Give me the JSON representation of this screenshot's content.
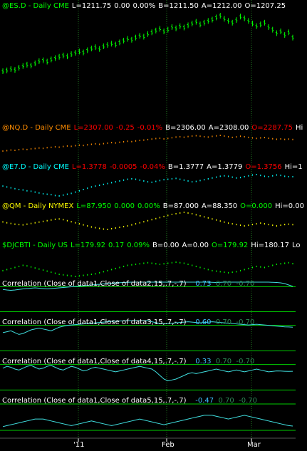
{
  "chart_data": {
    "type": "line",
    "x_ticks": [
      "'11",
      "Feb",
      "Mar"
    ],
    "panels": [
      {
        "id": "es",
        "style": "bar",
        "color": "#00ff00",
        "header": [
          {
            "text": "@ES.D - Daily  CME",
            "color": "#00ff00"
          },
          {
            "text": "L=1211.75",
            "color": "#ffffff"
          },
          {
            "text": "0.00",
            "color": "#ffffff"
          },
          {
            "text": "0.00%",
            "color": "#ffffff"
          },
          {
            "text": "B=1211.50",
            "color": "#ffffff"
          },
          {
            "text": "A=1212.00",
            "color": "#ffffff"
          },
          {
            "text": "O=1207.25",
            "color": "#ffffff"
          }
        ],
        "values": [
          1135,
          1137,
          1140,
          1138,
          1143,
          1147,
          1150,
          1148,
          1153,
          1158,
          1160,
          1157,
          1162,
          1165,
          1168,
          1171,
          1169,
          1174,
          1177,
          1180,
          1178,
          1183,
          1187,
          1190,
          1186,
          1192,
          1195,
          1198,
          1196,
          1201,
          1205,
          1209,
          1207,
          1212,
          1216,
          1214,
          1220,
          1224,
          1228,
          1232,
          1226,
          1230,
          1236,
          1233,
          1238,
          1235,
          1240,
          1244,
          1248,
          1242,
          1246,
          1250,
          1253,
          1258,
          1262,
          1255,
          1250,
          1246,
          1252,
          1260,
          1256,
          1250,
          1244,
          1238,
          1242,
          1246,
          1236,
          1230,
          1222,
          1226,
          1218,
          1224,
          1212
        ]
      },
      {
        "id": "nq",
        "style": "dots",
        "color": "#ff8c00",
        "header": [
          {
            "text": "@NQ.D - Daily  CME",
            "color": "#ff8c00"
          },
          {
            "text": "L=2307.00",
            "color": "#ff0000"
          },
          {
            "text": "-0.25",
            "color": "#ff0000"
          },
          {
            "text": "-0.01%",
            "color": "#ff0000"
          },
          {
            "text": "B=2306.00",
            "color": "#ffffff"
          },
          {
            "text": "A=2308.00",
            "color": "#ffffff"
          },
          {
            "text": "O=2287.75",
            "color": "#ff0000"
          },
          {
            "text": "Hi",
            "color": "#ffffff"
          }
        ],
        "values": [
          2170,
          2175,
          2182,
          2178,
          2186,
          2192,
          2188,
          2196,
          2200,
          2206,
          2202,
          2210,
          2214,
          2220,
          2216,
          2224,
          2230,
          2226,
          2234,
          2240,
          2236,
          2244,
          2250,
          2256,
          2250,
          2258,
          2264,
          2270,
          2266,
          2274,
          2280,
          2286,
          2282,
          2290,
          2296,
          2300,
          2306,
          2312,
          2318,
          2322,
          2314,
          2320,
          2328,
          2336,
          2340,
          2334,
          2342,
          2348,
          2352,
          2346,
          2340,
          2336,
          2344,
          2350,
          2356,
          2348,
          2340,
          2332,
          2338,
          2346,
          2340,
          2332,
          2326,
          2320,
          2326,
          2330,
          2322,
          2316,
          2310,
          2314,
          2308,
          2312,
          2307
        ]
      },
      {
        "id": "e7",
        "style": "dots",
        "color": "#00ffff",
        "header": [
          {
            "text": "@E7.D - Daily  CME",
            "color": "#00ffff"
          },
          {
            "text": "L=1.3778",
            "color": "#ff0000"
          },
          {
            "text": "-0.0005",
            "color": "#ff0000"
          },
          {
            "text": "-0.04%",
            "color": "#ff0000"
          },
          {
            "text": "B=1.3777",
            "color": "#ffffff"
          },
          {
            "text": "A=1.3779",
            "color": "#ffffff"
          },
          {
            "text": "O=1.3756",
            "color": "#ff0000"
          },
          {
            "text": "Hi=1",
            "color": "#ffffff"
          }
        ],
        "values": [
          1.334,
          1.33,
          1.326,
          1.322,
          1.318,
          1.316,
          1.312,
          1.31,
          1.306,
          1.302,
          1.298,
          1.296,
          1.294,
          1.29,
          1.288,
          1.292,
          1.296,
          1.3,
          1.306,
          1.312,
          1.318,
          1.324,
          1.33,
          1.334,
          1.338,
          1.342,
          1.346,
          1.35,
          1.354,
          1.358,
          1.362,
          1.366,
          1.368,
          1.366,
          1.362,
          1.358,
          1.354,
          1.352,
          1.356,
          1.36,
          1.364,
          1.366,
          1.368,
          1.37,
          1.366,
          1.362,
          1.358,
          1.354,
          1.356,
          1.36,
          1.364,
          1.368,
          1.372,
          1.376,
          1.38,
          1.382,
          1.38,
          1.376,
          1.372,
          1.374,
          1.378,
          1.382,
          1.386,
          1.388,
          1.384,
          1.38,
          1.378,
          1.382,
          1.386,
          1.384,
          1.38,
          1.378,
          1.3778
        ]
      },
      {
        "id": "qm",
        "style": "dots",
        "color": "#ffff00",
        "header": [
          {
            "text": "@QM - Daily  NYMEX",
            "color": "#ffff00"
          },
          {
            "text": "L=87.950",
            "color": "#00ff00"
          },
          {
            "text": "0.000",
            "color": "#00ff00"
          },
          {
            "text": "0.00%",
            "color": "#00ff00"
          },
          {
            "text": "B=87.000",
            "color": "#ffffff"
          },
          {
            "text": "A=88.350",
            "color": "#ffffff"
          },
          {
            "text": "O=0.000",
            "color": "#00ff00"
          },
          {
            "text": "Hi=0.00",
            "color": "#ffffff"
          }
        ],
        "values": [
          89.5,
          89.0,
          88.6,
          88.2,
          88.0,
          87.8,
          88.2,
          88.6,
          89.0,
          89.4,
          89.8,
          90.2,
          90.6,
          91.0,
          91.2,
          90.8,
          90.2,
          89.6,
          89.0,
          88.4,
          87.8,
          87.2,
          86.6,
          86.2,
          85.8,
          85.4,
          85.2,
          85.6,
          86.0,
          86.4,
          86.8,
          87.2,
          87.8,
          88.4,
          89.0,
          89.6,
          90.2,
          90.8,
          91.4,
          92.0,
          92.6,
          93.2,
          93.8,
          94.2,
          94.6,
          95.0,
          94.6,
          94.2,
          93.6,
          93.0,
          92.4,
          91.8,
          91.2,
          90.6,
          90.0,
          89.4,
          88.8,
          88.4,
          88.0,
          87.6,
          87.2,
          87.6,
          88.0,
          88.4,
          88.8,
          88.4,
          88.0,
          87.6,
          87.2,
          87.6,
          88.0,
          88.2,
          87.95
        ]
      },
      {
        "id": "dj",
        "style": "dots",
        "color": "#00ff00",
        "header": [
          {
            "text": "$DJCBTI - Daily  US",
            "color": "#00ff00"
          },
          {
            "text": "L=179.92",
            "color": "#00ff00"
          },
          {
            "text": "0.17",
            "color": "#00ff00"
          },
          {
            "text": "0.09%",
            "color": "#00ff00"
          },
          {
            "text": "B=0.00",
            "color": "#ffffff"
          },
          {
            "text": "A=0.00",
            "color": "#ffffff"
          },
          {
            "text": "O=179.92",
            "color": "#00ff00"
          },
          {
            "text": "Hi=180.17",
            "color": "#ffffff"
          },
          {
            "text": "Lo",
            "color": "#ffffff"
          }
        ],
        "values": [
          178.6,
          178.8,
          179.0,
          179.2,
          179.4,
          179.6,
          179.5,
          179.3,
          179.1,
          178.9,
          178.7,
          178.5,
          178.3,
          178.1,
          177.9,
          177.8,
          177.7,
          177.6,
          177.5,
          177.6,
          177.7,
          177.8,
          177.9,
          178.0,
          178.2,
          178.4,
          178.6,
          178.8,
          179.0,
          179.2,
          179.4,
          179.6,
          179.7,
          179.8,
          179.9,
          180.0,
          180.1,
          180.0,
          179.9,
          179.8,
          179.9,
          180.0,
          180.1,
          180.2,
          180.1,
          180.0,
          179.8,
          179.6,
          179.4,
          179.2,
          179.0,
          178.8,
          178.6,
          178.5,
          178.4,
          178.3,
          178.2,
          178.3,
          178.4,
          178.6,
          178.8,
          179.0,
          179.2,
          179.4,
          179.3,
          179.2,
          179.4,
          179.6,
          179.8,
          179.9,
          180.0,
          180.1,
          179.92
        ]
      }
    ],
    "correlations": [
      {
        "id": "c2",
        "label": "Correlation (Close of data1,Close of data2,15,.7,-.7)",
        "value": "0.73",
        "upper": "0.70",
        "lower": "-0.70",
        "values": [
          0.55,
          0.52,
          0.5,
          0.52,
          0.55,
          0.58,
          0.6,
          0.62,
          0.64,
          0.62,
          0.6,
          0.58,
          0.6,
          0.62,
          0.64,
          0.66,
          0.68,
          0.7,
          0.72,
          0.74,
          0.76,
          0.78,
          0.8,
          0.82,
          0.84,
          0.86,
          0.88,
          0.9,
          0.92,
          0.93,
          0.94,
          0.95,
          0.96,
          0.96,
          0.96,
          0.96,
          0.96,
          0.96,
          0.96,
          0.96,
          0.96,
          0.96,
          0.96,
          0.96,
          0.96,
          0.96,
          0.96,
          0.96,
          0.96,
          0.96,
          0.96,
          0.96,
          0.95,
          0.94,
          0.95,
          0.96,
          0.96,
          0.96,
          0.96,
          0.96,
          0.96,
          0.96,
          0.96,
          0.96,
          0.96,
          0.96,
          0.96,
          0.95,
          0.94,
          0.92,
          0.88,
          0.8,
          0.73
        ]
      },
      {
        "id": "c3",
        "label": "Correlation (Close of data1,Close of data3,15,.7,-.7)",
        "value": "0.60",
        "upper": "0.70",
        "lower": "-0.70",
        "values": [
          0.3,
          0.35,
          0.4,
          0.3,
          0.2,
          0.25,
          0.35,
          0.45,
          0.5,
          0.55,
          0.5,
          0.45,
          0.4,
          0.5,
          0.6,
          0.65,
          0.7,
          0.72,
          0.74,
          0.76,
          0.78,
          0.8,
          0.82,
          0.84,
          0.86,
          0.88,
          0.9,
          0.92,
          0.93,
          0.94,
          0.95,
          0.96,
          0.96,
          0.96,
          0.96,
          0.96,
          0.96,
          0.9,
          0.85,
          0.8,
          0.78,
          0.8,
          0.82,
          0.84,
          0.86,
          0.88,
          0.9,
          0.88,
          0.86,
          0.84,
          0.86,
          0.88,
          0.9,
          0.88,
          0.86,
          0.84,
          0.82,
          0.8,
          0.78,
          0.76,
          0.74,
          0.72,
          0.74,
          0.76,
          0.74,
          0.72,
          0.7,
          0.68,
          0.66,
          0.64,
          0.62,
          0.61,
          0.6
        ]
      },
      {
        "id": "c4",
        "label": "Correlation (Close of data1,Close of data4,15,.7,-.7)",
        "value": "0.33",
        "upper": "0.70",
        "lower": "-0.70",
        "values": [
          0.5,
          0.6,
          0.55,
          0.45,
          0.4,
          0.5,
          0.6,
          0.65,
          0.55,
          0.45,
          0.5,
          0.6,
          0.65,
          0.55,
          0.45,
          0.4,
          0.5,
          0.6,
          0.55,
          0.45,
          0.35,
          0.4,
          0.5,
          0.55,
          0.5,
          0.45,
          0.4,
          0.35,
          0.3,
          0.35,
          0.4,
          0.45,
          0.5,
          0.55,
          0.6,
          0.55,
          0.5,
          0.45,
          0.3,
          0.1,
          -0.1,
          -0.2,
          -0.15,
          -0.1,
          0.0,
          0.1,
          0.2,
          0.25,
          0.2,
          0.25,
          0.3,
          0.35,
          0.4,
          0.45,
          0.4,
          0.35,
          0.3,
          0.35,
          0.4,
          0.35,
          0.3,
          0.35,
          0.4,
          0.45,
          0.4,
          0.35,
          0.3,
          0.32,
          0.35,
          0.34,
          0.33,
          0.32,
          0.33
        ]
      },
      {
        "id": "c5",
        "label": "Correlation (Close of data1,Close of data5,15,.7,-.7)",
        "value": "-0.47",
        "upper": "0.70",
        "lower": "-0.70",
        "values": [
          -0.5,
          -0.45,
          -0.4,
          -0.35,
          -0.3,
          -0.25,
          -0.2,
          -0.15,
          -0.1,
          -0.1,
          -0.1,
          -0.15,
          -0.2,
          -0.25,
          -0.3,
          -0.35,
          -0.4,
          -0.45,
          -0.4,
          -0.35,
          -0.3,
          -0.25,
          -0.2,
          -0.25,
          -0.3,
          -0.35,
          -0.4,
          -0.45,
          -0.4,
          -0.35,
          -0.3,
          -0.25,
          -0.2,
          -0.15,
          -0.1,
          -0.15,
          -0.2,
          -0.25,
          -0.3,
          -0.35,
          -0.4,
          -0.35,
          -0.3,
          -0.25,
          -0.2,
          -0.15,
          -0.1,
          -0.05,
          0.0,
          0.05,
          0.1,
          0.1,
          0.1,
          0.05,
          0.0,
          -0.05,
          -0.1,
          -0.05,
          0.0,
          0.05,
          0.1,
          0.05,
          0.0,
          -0.05,
          -0.1,
          -0.15,
          -0.2,
          -0.25,
          -0.3,
          -0.35,
          -0.4,
          -0.45,
          -0.47
        ]
      }
    ]
  },
  "colors": {
    "background": "#000000",
    "grid": "#1f7a1f",
    "threshold": "#00cc00",
    "corr_line": "#40e0e0",
    "corr_value": "#40c0ff",
    "band": "#2e8b57"
  }
}
